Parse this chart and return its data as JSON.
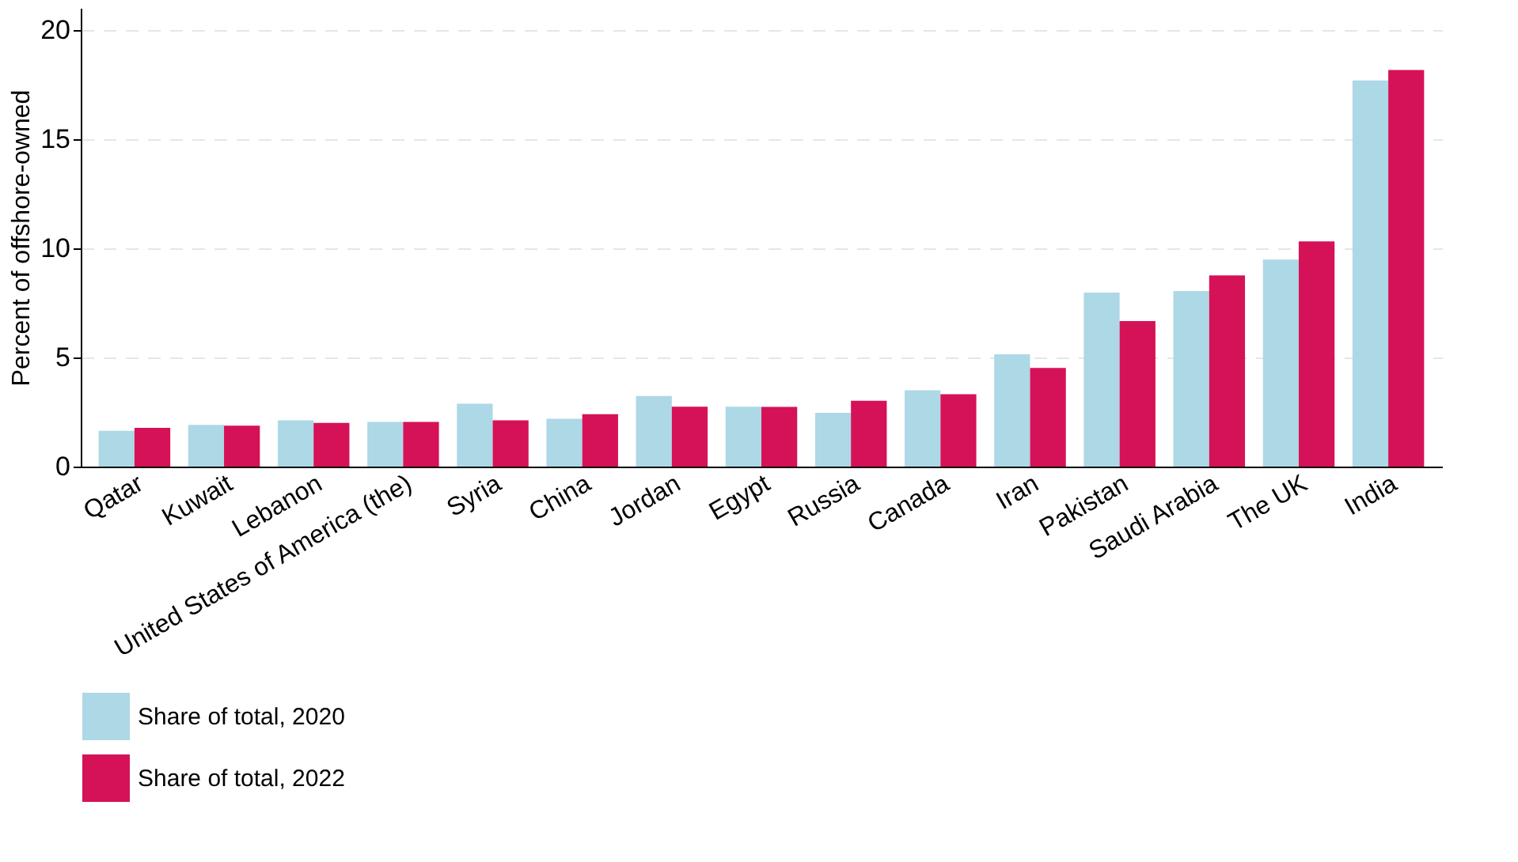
{
  "chart_data": {
    "type": "bar",
    "ylabel": "Percent of offshore-owned",
    "categories": [
      "Qatar",
      "Kuwait",
      "Lebanon",
      "United States of America (the)",
      "Syria",
      "China",
      "Jordan",
      "Egypt",
      "Russia",
      "Canada",
      "Iran",
      "Pakistan",
      "Saudi Arabia",
      "The UK",
      "India"
    ],
    "series": [
      {
        "name": "Share of total, 2020",
        "color": "#add8e6",
        "values": [
          1.64,
          1.91,
          2.12,
          2.05,
          2.88,
          2.19,
          3.23,
          2.74,
          2.46,
          3.49,
          5.14,
          7.97,
          8.04,
          9.48,
          17.68
        ]
      },
      {
        "name": "Share of total, 2022",
        "color": "#d51257",
        "values": [
          1.77,
          1.87,
          2.0,
          2.05,
          2.12,
          2.4,
          2.74,
          2.73,
          3.01,
          3.31,
          4.52,
          6.66,
          8.75,
          10.31,
          18.16
        ]
      }
    ],
    "ylim": [
      0,
      21
    ],
    "yticks": [
      0,
      5,
      10,
      15,
      20
    ],
    "grid": "y",
    "legend": "bottom"
  }
}
